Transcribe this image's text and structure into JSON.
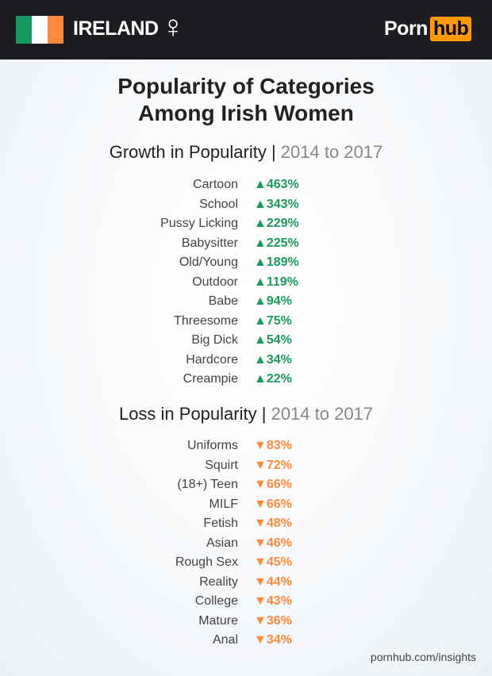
{
  "header": {
    "country": "IRELAND",
    "gender_icon": "female-symbol",
    "flag_colors": [
      "#169b62",
      "#ffffff",
      "#ff883e"
    ],
    "logo": {
      "part1": "Porn",
      "part2": "hub",
      "accent": "#ff9900"
    }
  },
  "title_line1": "Popularity of Categories",
  "title_line2": "Among Irish Women",
  "chart_data": [
    {
      "type": "table",
      "title": "Growth in Popularity",
      "subtitle": "2014 to 2017",
      "color": "#1a9b5c",
      "direction": "up",
      "unit": "%",
      "categories": [
        "Cartoon",
        "School",
        "Pussy Licking",
        "Babysitter",
        "Old/Young",
        "Outdoor",
        "Babe",
        "Threesome",
        "Big Dick",
        "Hardcore",
        "Creampie"
      ],
      "values": [
        463,
        343,
        229,
        225,
        189,
        119,
        94,
        75,
        54,
        34,
        22
      ]
    },
    {
      "type": "table",
      "title": "Loss in Popularity",
      "subtitle": "2014 to 2017",
      "color": "#ff8a3d",
      "direction": "down",
      "unit": "%",
      "categories": [
        "Uniforms",
        "Squirt",
        "(18+) Teen",
        "MILF",
        "Fetish",
        "Asian",
        "Rough Sex",
        "Reality",
        "College",
        "Mature",
        "Anal"
      ],
      "values": [
        83,
        72,
        66,
        66,
        48,
        46,
        45,
        44,
        43,
        36,
        34
      ]
    }
  ],
  "footer": "pornhub.com/insights"
}
